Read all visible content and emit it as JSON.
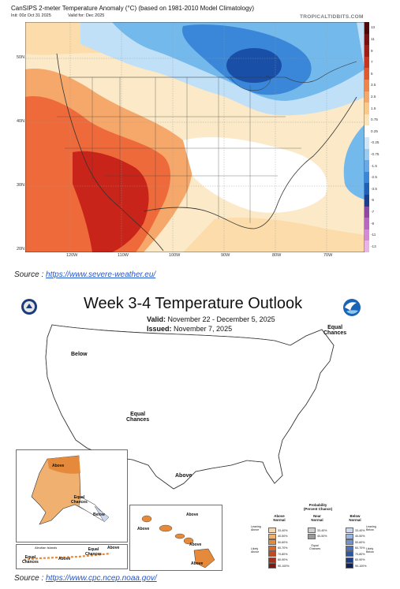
{
  "map1": {
    "title": "CanSIPS 2-meter Temperature Anomaly (°C) (based on 1981-2010 Model Climatology)",
    "init": "Init: 00z Oct 31 2025",
    "valid": "Valid for: Dec 2025",
    "brand": "TROPICALTIDBITS.COM",
    "lat_labels": [
      "50N",
      "40N",
      "30N",
      "20N"
    ],
    "lon_labels": [
      "120W",
      "110W",
      "100W",
      "90W",
      "80W",
      "70W"
    ],
    "colorbar_labels": [
      "-13",
      "-11",
      "-9",
      "-7",
      "-5",
      "-3.5",
      "-2.5",
      "-1.5",
      "-0.75",
      "-0.25",
      "0.25",
      "0.75",
      "1.5",
      "2.5",
      "3.5",
      "5",
      "7",
      "9",
      "11",
      "13"
    ],
    "colors": {
      "warm_dark": "#c8241a",
      "warm_mid": "#ef6a3a",
      "warm_light": "#f6a86a",
      "warm_pale": "#fbdcaa",
      "neutral": "#ffffff",
      "cold_pale": "#bfe0f7",
      "cold_light": "#74b9ec",
      "cold_mid": "#3a86d8",
      "cold_dark": "#1a4fa8"
    }
  },
  "source1": {
    "prefix": "Source : ",
    "link": "https://www.severe-weather.eu/"
  },
  "map2": {
    "title": "Week 3-4 Temperature Outlook",
    "valid_label": "Valid:",
    "valid_value": "November 22 - December 5, 2025",
    "issued_label": "Issued:",
    "issued_value": "November 7, 2025",
    "labels": {
      "below_west": "Below",
      "equal_ne": "Equal\nChances",
      "equal_center": "Equal\nChances",
      "above_south": "Above",
      "ak_above": "Above",
      "ak_equal": "Equal\nChances",
      "ak_below": "Below",
      "hi_above_1": "Above",
      "hi_above_2": "Above",
      "hi_above_3": "Above",
      "hi_above_4": "Above",
      "aleutian": "Aleutian Islands",
      "al_equal_1": "Equal\nChances",
      "al_above": "Above",
      "al_equal_2": "Equal\nChances",
      "al_above_2": "Above"
    },
    "legend": {
      "title": "Probability\n(Percent Chance)",
      "above_head": "Above\nNormal",
      "near_head": "Near\nNormal",
      "below_head": "Below\nNormal",
      "leaning_above": "Leaning\nAbove",
      "likely_above": "Likely\nAbove",
      "leaning_below": "Leaning\nBelow",
      "likely_below": "Likely\nBelow",
      "equal_chances": "Equal\nChances",
      "above_ranges": [
        "33-40%",
        "40-50%",
        "50-60%",
        "60-70%",
        "70-80%",
        "80-90%",
        "90-100%"
      ],
      "near_ranges": [
        "33-40%",
        "40-50%"
      ],
      "below_ranges": [
        "33-40%",
        "40-50%",
        "50-60%",
        "60-70%",
        "70-80%",
        "80-90%",
        "90-100%"
      ],
      "above_colors": [
        "#f6d8b0",
        "#f0b070",
        "#e58a3a",
        "#d9662a",
        "#c04a22",
        "#a2301c",
        "#7a1a12"
      ],
      "near_colors": [
        "#cfcfcf",
        "#9a9a9a"
      ],
      "below_colors": [
        "#cdd8ee",
        "#9db6e0",
        "#7294cf",
        "#4c74bb",
        "#2f569f",
        "#1e3c82",
        "#10225e"
      ]
    }
  },
  "source2": {
    "prefix": "Source : ",
    "link": "https://www.cpc.ncep.noaa.gov/"
  }
}
